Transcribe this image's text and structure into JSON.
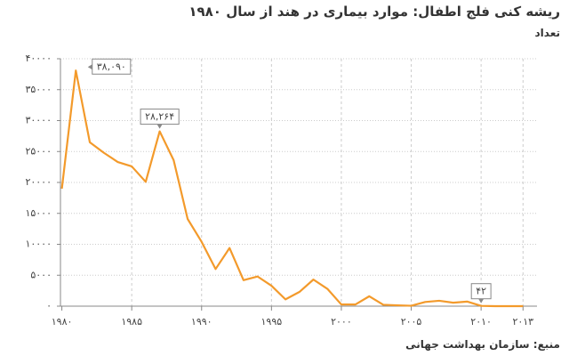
{
  "chart_data": {
    "type": "line",
    "title": "ریشه کنی فلج اطفال: موارد بیماری در هند از سال ۱۹۸۰",
    "subtitle": "تعداد",
    "source": "منبع: سازمان بهداشت جهانی",
    "x": [
      1980,
      1981,
      1982,
      1983,
      1984,
      1985,
      1986,
      1987,
      1988,
      1989,
      1990,
      1991,
      1992,
      1993,
      1994,
      1995,
      1996,
      1997,
      1998,
      1999,
      2000,
      2001,
      2002,
      2003,
      2004,
      2005,
      2006,
      2007,
      2008,
      2009,
      2010,
      2011,
      2012,
      2013
    ],
    "series": [
      {
        "name": "موارد",
        "color": "#f39a2b",
        "values": [
          19000,
          38090,
          26500,
          24800,
          23300,
          22600,
          20100,
          28264,
          23600,
          14100,
          10400,
          6000,
          9400,
          4200,
          4800,
          3300,
          1100,
          2300,
          4300,
          2800,
          265,
          268,
          1600,
          225,
          134,
          66,
          676,
          874,
          559,
          741,
          42,
          1,
          0,
          0
        ],
        "value_labels": [
          null,
          "۳۸,۰۹۰",
          null,
          null,
          null,
          null,
          null,
          "۲۸,۲۶۴",
          null,
          null,
          null,
          null,
          null,
          null,
          null,
          null,
          null,
          null,
          null,
          null,
          null,
          null,
          null,
          null,
          null,
          null,
          null,
          null,
          null,
          null,
          "۴۲",
          null,
          null,
          null
        ]
      }
    ],
    "xlim": [
      1979.9,
      2014
    ],
    "xticks": [
      {
        "value": 1980,
        "label": "۱۹۸۰"
      },
      {
        "value": 1985,
        "label": "۱۹۸۵"
      },
      {
        "value": 1990,
        "label": "۱۹۹۰"
      },
      {
        "value": 1995,
        "label": "۱۹۹۵"
      },
      {
        "value": 2000,
        "label": "۲۰۰۰"
      },
      {
        "value": 2005,
        "label": "۲۰۰۵"
      },
      {
        "value": 2010,
        "label": "۲۰۱۰"
      },
      {
        "value": 2013,
        "label": "۲۰۱۳"
      }
    ],
    "ylim": [
      0,
      40000
    ],
    "yticks": [
      {
        "value": 0,
        "label": "۰"
      },
      {
        "value": 5000,
        "label": "۵۰۰۰"
      },
      {
        "value": 10000,
        "label": "۱۰۰۰۰"
      },
      {
        "value": 15000,
        "label": "۱۵۰۰۰"
      },
      {
        "value": 20000,
        "label": "۲۰۰۰۰"
      },
      {
        "value": 25000,
        "label": "۲۵۰۰۰"
      },
      {
        "value": 30000,
        "label": "۳۰۰۰۰"
      },
      {
        "value": 35000,
        "label": "۳۵۰۰۰"
      },
      {
        "value": 40000,
        "label": "۴۰۰۰۰"
      }
    ],
    "grid": true
  }
}
